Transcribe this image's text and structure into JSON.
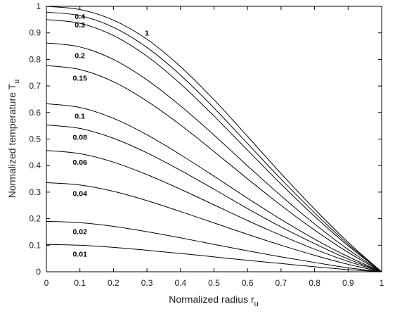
{
  "chart_data": {
    "type": "line",
    "xlabel": "Normalized radius r",
    "xlabel_sub": "u",
    "ylabel": "Normalized temperature T",
    "ylabel_sub": "u",
    "xlim": [
      0,
      1
    ],
    "ylim": [
      0,
      1
    ],
    "xticks": [
      "0",
      "0.1",
      "0.2",
      "0.3",
      "0.4",
      "0.5",
      "0.6",
      "0.7",
      "0.8",
      "0.9",
      "1"
    ],
    "yticks": [
      "0",
      "0.1",
      "0.2",
      "0.3",
      "0.4",
      "0.5",
      "0.6",
      "0.7",
      "0.8",
      "0.9",
      "1"
    ],
    "grid": false,
    "legend": "none",
    "line_color": "#000000",
    "x": [
      0,
      0.1,
      0.2,
      0.3,
      0.4,
      0.5,
      0.6,
      0.7,
      0.8,
      0.9,
      1.0
    ],
    "series": [
      {
        "label": "0.01",
        "values": [
          0.103,
          0.1,
          0.092,
          0.081,
          0.069,
          0.056,
          0.043,
          0.031,
          0.019,
          0.008,
          0.0
        ]
      },
      {
        "label": "0.02",
        "values": [
          0.19,
          0.185,
          0.171,
          0.151,
          0.128,
          0.103,
          0.079,
          0.056,
          0.035,
          0.015,
          0.0
        ]
      },
      {
        "label": "0.04",
        "values": [
          0.336,
          0.327,
          0.303,
          0.268,
          0.227,
          0.184,
          0.141,
          0.1,
          0.062,
          0.028,
          0.0
        ]
      },
      {
        "label": "0.06",
        "values": [
          0.457,
          0.445,
          0.413,
          0.366,
          0.311,
          0.252,
          0.193,
          0.137,
          0.085,
          0.039,
          0.0
        ]
      },
      {
        "label": "0.08",
        "values": [
          0.553,
          0.54,
          0.503,
          0.448,
          0.382,
          0.311,
          0.238,
          0.169,
          0.106,
          0.048,
          0.0
        ]
      },
      {
        "label": "0.1",
        "values": [
          0.633,
          0.619,
          0.578,
          0.516,
          0.441,
          0.36,
          0.277,
          0.197,
          0.123,
          0.057,
          0.0
        ]
      },
      {
        "label": "0.15",
        "values": [
          0.777,
          0.762,
          0.716,
          0.643,
          0.553,
          0.453,
          0.35,
          0.25,
          0.157,
          0.073,
          0.0
        ]
      },
      {
        "label": "0.2",
        "values": [
          0.862,
          0.847,
          0.8,
          0.723,
          0.625,
          0.515,
          0.399,
          0.286,
          0.18,
          0.084,
          0.0
        ]
      },
      {
        "label": "0.3",
        "values": [
          0.95,
          0.936,
          0.89,
          0.812,
          0.708,
          0.587,
          0.458,
          0.33,
          0.209,
          0.098,
          0.0
        ]
      },
      {
        "label": "0.4",
        "values": [
          0.978,
          0.965,
          0.921,
          0.845,
          0.741,
          0.617,
          0.483,
          0.349,
          0.222,
          0.104,
          0.0
        ]
      },
      {
        "label": "1",
        "values": [
          1.0,
          0.988,
          0.948,
          0.876,
          0.773,
          0.648,
          0.51,
          0.37,
          0.236,
          0.111,
          0.0
        ]
      }
    ]
  }
}
